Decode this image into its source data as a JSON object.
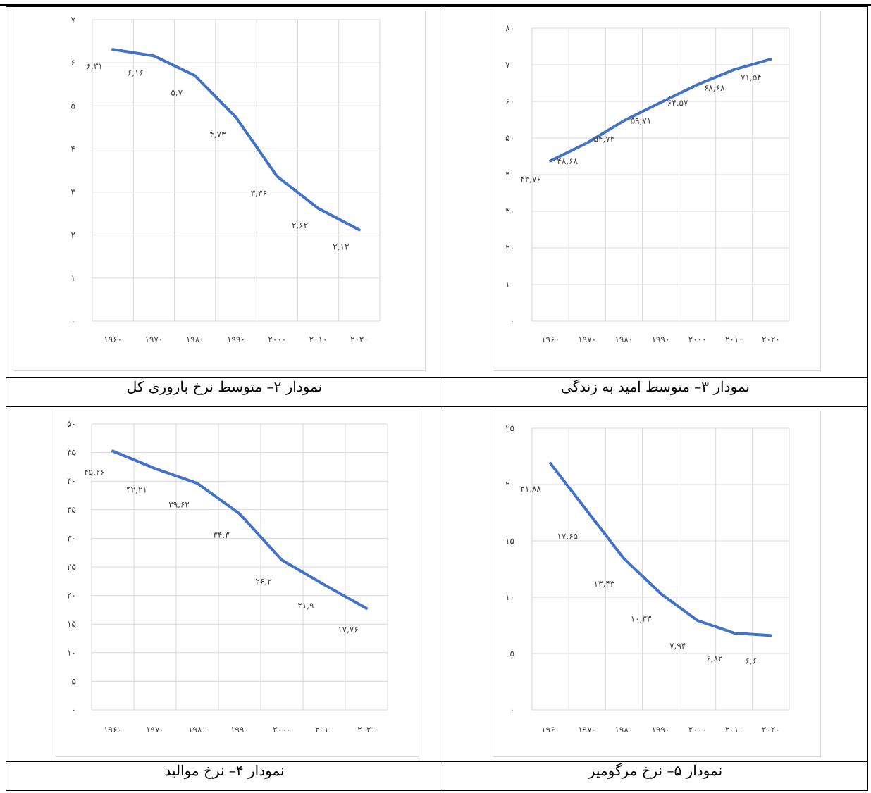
{
  "charts": [
    {
      "caption": "نمودار ۲– متوسط نرخ باروری کل",
      "chart_data": {
        "type": "line",
        "categories": [
          "۱۹۶۰",
          "۱۹۷۰",
          "۱۹۸۰",
          "۱۹۹۰",
          "۲۰۰۰",
          "۲۰۱۰",
          "۲۰۲۰"
        ],
        "values": [
          6.31,
          6.16,
          5.7,
          4.73,
          3.36,
          2.62,
          2.12
        ],
        "data_labels": [
          "۶,۳۱",
          "۶,۱۶",
          "۵,۷",
          "۴,۷۳",
          "۳,۳۶",
          "۲,۶۲",
          "۲,۱۲"
        ],
        "yticks": [
          "۰",
          "۱",
          "۲",
          "۳",
          "۴",
          "۵",
          "۶",
          "۷"
        ],
        "ylim": [
          0,
          7
        ],
        "grid": true,
        "color": "#4472c4"
      }
    },
    {
      "caption": "نمودار ۳– متوسط امید به زندگی",
      "chart_data": {
        "type": "line",
        "categories": [
          "۱۹۶۰",
          "۱۹۷۰",
          "۱۹۸۰",
          "۱۹۹۰",
          "۲۰۰۰",
          "۲۰۱۰",
          "۲۰۲۰"
        ],
        "values": [
          43.76,
          48.68,
          54.73,
          59.71,
          64.57,
          68.68,
          71.54
        ],
        "data_labels": [
          "۴۳,۷۶",
          "۴۸,۶۸",
          "۵۴,۷۳",
          "۵۹,۷۱",
          "۶۴,۵۷",
          "۶۸,۶۸",
          "۷۱,۵۴"
        ],
        "yticks": [
          "۰",
          "۱۰",
          "۲۰",
          "۳۰",
          "۴۰",
          "۵۰",
          "۶۰",
          "۷۰",
          "۸۰"
        ],
        "ylim": [
          0,
          80
        ],
        "grid": true,
        "color": "#4472c4"
      }
    },
    {
      "caption": "نمودار ۴– نرخ موالید",
      "chart_data": {
        "type": "line",
        "categories": [
          "۱۹۶۰",
          "۱۹۷۰",
          "۱۹۸۰",
          "۱۹۹۰",
          "۲۰۰۰",
          "۲۰۱۰",
          "۲۰۲۰"
        ],
        "values": [
          45.26,
          42.21,
          39.62,
          34.3,
          26.2,
          21.9,
          17.76
        ],
        "data_labels": [
          "۴۵,۲۶",
          "۴۲,۲۱",
          "۳۹,۶۲",
          "۳۴,۳",
          "۲۶,۲",
          "۲۱,۹",
          "۱۷,۷۶"
        ],
        "yticks": [
          "۰",
          "۵",
          "۱۰",
          "۱۵",
          "۲۰",
          "۲۵",
          "۳۰",
          "۳۵",
          "۴۰",
          "۴۵",
          "۵۰"
        ],
        "ylim": [
          0,
          50
        ],
        "grid": true,
        "color": "#4472c4"
      }
    },
    {
      "caption": "نمودار ۵– نرخ مرگومیر",
      "chart_data": {
        "type": "line",
        "categories": [
          "۱۹۶۰",
          "۱۹۷۰",
          "۱۹۸۰",
          "۱۹۹۰",
          "۲۰۰۰",
          "۲۰۱۰",
          "۲۰۲۰"
        ],
        "values": [
          21.88,
          17.65,
          13.43,
          10.33,
          7.94,
          6.82,
          6.6
        ],
        "data_labels": [
          "۲۱,۸۸",
          "۱۷,۶۵",
          "۱۳,۴۳",
          "۱۰,۳۳",
          "۷,۹۴",
          "۶,۸۲",
          "۶,۶"
        ],
        "yticks": [
          "۰",
          "۵",
          "۱۰",
          "۱۵",
          "۲۰",
          "۲۵"
        ],
        "ylim": [
          0,
          25
        ],
        "grid": true,
        "color": "#4472c4"
      }
    }
  ]
}
